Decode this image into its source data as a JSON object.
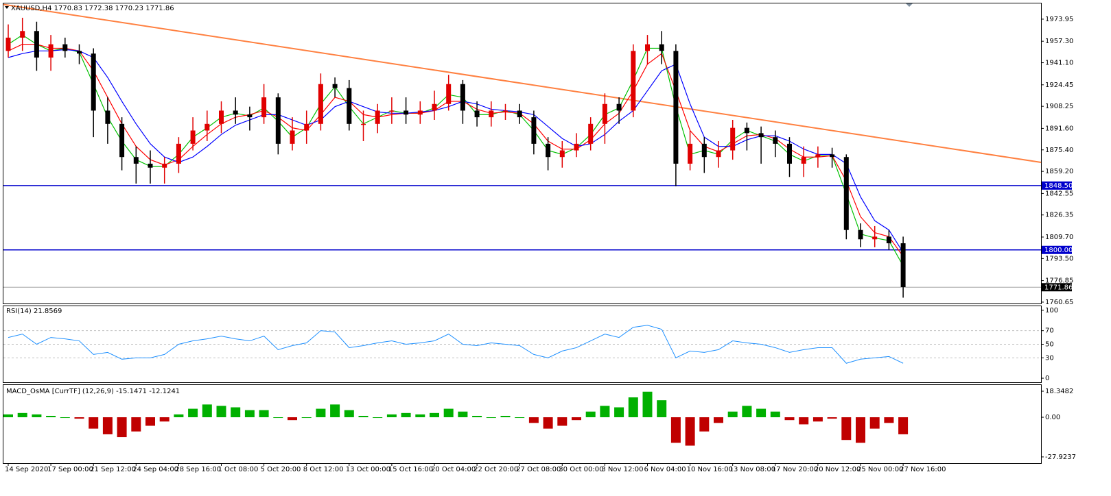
{
  "chart_data": [
    {
      "type": "candlestick",
      "title": "XAUUSD,H4  1770.83 1772.38 1770.23 1771.86",
      "categories": [
        "14 Sep 2020",
        null,
        null,
        "17 Sep 00:00",
        null,
        null,
        "21 Sep 12:00",
        null,
        null,
        "24 Sep 04:00",
        null,
        null,
        "28 Sep 16:00",
        null,
        null,
        "1 Oct 08:00",
        null,
        null,
        "5 Oct 20:00",
        null,
        null,
        "8 Oct 12:00",
        null,
        null,
        "13 Oct 00:00",
        null,
        null,
        "15 Oct 16:00",
        null,
        null,
        "20 Oct 04:00",
        null,
        null,
        "22 Oct 20:00",
        null,
        null,
        "27 Oct 08:00",
        null,
        null,
        "30 Oct 00:00",
        null,
        null,
        "3 Nov 12:00",
        null,
        null,
        "6 Nov 04:00",
        null,
        null,
        "10 Nov 16:00",
        null,
        null,
        "13 Nov 08:00",
        null,
        null,
        "17 Nov 20:00",
        null,
        null,
        "20 Nov 12:00",
        null,
        null,
        "25 Nov 00:00",
        null,
        null,
        "27 Nov 16:00"
      ],
      "open": [
        1950,
        1960,
        1965,
        1945,
        1955,
        1950,
        1948,
        1905,
        1895,
        1870,
        1865,
        1862,
        1865,
        1880,
        1890,
        1895,
        1905,
        1902,
        1900,
        1915,
        1880,
        1890,
        1895,
        1925,
        1922,
        1895,
        1895,
        1905,
        1905,
        1902,
        1905,
        1910,
        1925,
        1905,
        1900,
        1905,
        1905,
        1900,
        1880,
        1870,
        1875,
        1880,
        1895,
        1910,
        1905,
        1950,
        1955,
        1950,
        1865,
        1880,
        1870,
        1875,
        1892,
        1888,
        1885,
        1880,
        1865,
        1870,
        1872,
        1870,
        1815,
        1808,
        1810,
        1805
      ],
      "high": [
        1970,
        1975,
        1972,
        1962,
        1960,
        1955,
        1952,
        1915,
        1900,
        1878,
        1875,
        1870,
        1885,
        1900,
        1905,
        1912,
        1915,
        1908,
        1925,
        1918,
        1900,
        1905,
        1933,
        1930,
        1928,
        1905,
        1910,
        1915,
        1915,
        1912,
        1920,
        1932,
        1928,
        1912,
        1912,
        1910,
        1910,
        1905,
        1885,
        1882,
        1888,
        1900,
        1918,
        1915,
        1955,
        1962,
        1965,
        1955,
        1890,
        1885,
        1882,
        1898,
        1896,
        1893,
        1890,
        1885,
        1878,
        1878,
        1877,
        1872,
        1820,
        1818,
        1815,
        1810
      ],
      "low": [
        1945,
        1950,
        1935,
        1935,
        1945,
        1940,
        1885,
        1880,
        1860,
        1850,
        1850,
        1850,
        1858,
        1875,
        1882,
        1888,
        1895,
        1890,
        1895,
        1872,
        1875,
        1880,
        1890,
        1915,
        1890,
        1882,
        1888,
        1895,
        1895,
        1895,
        1898,
        1905,
        1895,
        1893,
        1893,
        1898,
        1895,
        1872,
        1860,
        1862,
        1870,
        1875,
        1880,
        1895,
        1900,
        1940,
        1940,
        1848,
        1860,
        1858,
        1862,
        1868,
        1875,
        1865,
        1870,
        1855,
        1855,
        1862,
        1862,
        1808,
        1802,
        1802,
        1800,
        1764
      ],
      "close": [
        1960,
        1965,
        1945,
        1955,
        1950,
        1948,
        1905,
        1895,
        1870,
        1865,
        1862,
        1865,
        1880,
        1890,
        1895,
        1905,
        1902,
        1900,
        1915,
        1880,
        1890,
        1895,
        1925,
        1922,
        1895,
        1895,
        1905,
        1905,
        1902,
        1905,
        1910,
        1925,
        1905,
        1900,
        1905,
        1905,
        1900,
        1880,
        1870,
        1875,
        1880,
        1895,
        1910,
        1905,
        1950,
        1955,
        1950,
        1865,
        1880,
        1870,
        1875,
        1892,
        1888,
        1885,
        1880,
        1865,
        1870,
        1872,
        1870,
        1815,
        1808,
        1810,
        1805,
        1772
      ],
      "up_color": "#e00000",
      "down_color": "#000000",
      "lines": [
        {
          "color": "#00c000",
          "values": [
            1955,
            1962,
            1955,
            1950,
            1952,
            1949,
            1925,
            1900,
            1882,
            1868,
            1863,
            1863,
            1872,
            1885,
            1892,
            1900,
            1903,
            1901,
            1907,
            1897,
            1885,
            1892,
            1910,
            1923,
            1908,
            1895,
            1900,
            1905,
            1903,
            1903,
            1907,
            1917,
            1915,
            1902,
            1902,
            1905,
            1902,
            1890,
            1875,
            1872,
            1877,
            1887,
            1902,
            1907,
            1928,
            1952,
            1952,
            1908,
            1872,
            1875,
            1872,
            1883,
            1890,
            1886,
            1882,
            1872,
            1867,
            1871,
            1871,
            1842,
            1812,
            1809,
            1807,
            1788
          ]
        },
        {
          "color": "#ff0000",
          "values": [
            1950,
            1955,
            1955,
            1952,
            1952,
            1950,
            1935,
            1915,
            1895,
            1878,
            1868,
            1864,
            1868,
            1878,
            1887,
            1895,
            1900,
            1902,
            1905,
            1900,
            1892,
            1890,
            1902,
            1915,
            1912,
            1902,
            1900,
            1902,
            1903,
            1903,
            1905,
            1912,
            1912,
            1906,
            1903,
            1904,
            1903,
            1895,
            1882,
            1876,
            1876,
            1883,
            1895,
            1903,
            1920,
            1940,
            1948,
            1920,
            1890,
            1878,
            1874,
            1880,
            1886,
            1887,
            1884,
            1876,
            1870,
            1870,
            1871,
            1852,
            1825,
            1813,
            1810,
            1795
          ]
        },
        {
          "color": "#0000ff",
          "values": [
            1945,
            1948,
            1950,
            1950,
            1951,
            1950,
            1945,
            1930,
            1912,
            1895,
            1880,
            1870,
            1866,
            1870,
            1878,
            1887,
            1894,
            1898,
            1902,
            1902,
            1898,
            1894,
            1898,
            1908,
            1912,
            1908,
            1904,
            1903,
            1903,
            1904,
            1905,
            1908,
            1912,
            1910,
            1906,
            1905,
            1904,
            1902,
            1893,
            1884,
            1878,
            1880,
            1887,
            1897,
            1905,
            1920,
            1935,
            1940,
            1910,
            1885,
            1878,
            1878,
            1883,
            1886,
            1886,
            1882,
            1876,
            1872,
            1872,
            1865,
            1840,
            1822,
            1815,
            1798
          ]
        }
      ],
      "trendline": {
        "start": 1985,
        "end": 1866,
        "color": "#ff8040"
      },
      "hlines": [
        {
          "value": 1848.5,
          "label": "1848.50",
          "color": "#0000cc"
        },
        {
          "value": 1800,
          "label": "1800.00",
          "color": "#0000cc"
        }
      ],
      "price_line": {
        "value": 1771.86,
        "label": "1771.86",
        "color": "#a0a0a0"
      },
      "ylim": [
        1759.6,
        1985.8
      ],
      "yticks": [
        {
          "value": 1973.95,
          "label": "1973.95"
        },
        {
          "value": 1957.3,
          "label": "1957.30"
        },
        {
          "value": 1941.1,
          "label": "1941.10"
        },
        {
          "value": 1924.45,
          "label": "1924.45"
        },
        {
          "value": 1908.25,
          "label": "1908.25"
        },
        {
          "value": 1891.6,
          "label": "1891.60"
        },
        {
          "value": 1875.4,
          "label": "1875.40"
        },
        {
          "value": 1859.2,
          "label": "1859.20"
        },
        {
          "value": 1842.55,
          "label": "1842.55"
        },
        {
          "value": 1826.35,
          "label": "1826.35"
        },
        {
          "value": 1809.7,
          "label": "1809.70"
        },
        {
          "value": 1793.5,
          "label": "1793.50"
        },
        {
          "value": 1776.85,
          "label": "1776.85"
        },
        {
          "value": 1760.65,
          "label": "1760.65"
        }
      ]
    },
    {
      "type": "line",
      "title": "RSI(14) 21.8569",
      "values": [
        60,
        65,
        50,
        60,
        58,
        55,
        35,
        38,
        28,
        30,
        30,
        35,
        50,
        55,
        58,
        62,
        58,
        55,
        62,
        42,
        48,
        52,
        70,
        68,
        45,
        48,
        52,
        55,
        50,
        52,
        55,
        65,
        50,
        48,
        52,
        50,
        48,
        35,
        30,
        40,
        45,
        55,
        65,
        60,
        75,
        78,
        72,
        30,
        40,
        38,
        42,
        55,
        52,
        50,
        45,
        38,
        42,
        45,
        45,
        22,
        28,
        30,
        32,
        22
      ],
      "color": "#1e90ff",
      "levels": [
        70,
        50,
        30
      ],
      "ylim": [
        -6,
        106
      ],
      "yticks": [
        100,
        70,
        50,
        30,
        0
      ]
    },
    {
      "type": "histogram",
      "title": "MACD_OsMA [CurrTF] (12,26,9) -15.1471 -12.1241",
      "values": [
        2,
        3,
        2,
        1,
        0,
        -1,
        -8,
        -12,
        -14,
        -10,
        -6,
        -3,
        2,
        6,
        9,
        8,
        7,
        5,
        5,
        0,
        -2,
        0,
        6,
        9,
        5,
        1,
        0,
        2,
        3,
        2,
        3,
        6,
        4,
        1,
        0,
        1,
        0,
        -4,
        -8,
        -6,
        -2,
        4,
        8,
        7,
        14,
        18,
        12,
        -18,
        -20,
        -10,
        -4,
        4,
        8,
        6,
        4,
        -2,
        -5,
        -3,
        -1,
        -16,
        -18,
        -8,
        -4,
        -12
      ],
      "pos_color": "#00b000",
      "neg_color": "#c00000",
      "ylim": [
        -32.3,
        22.7
      ],
      "yticks": [
        18.3482,
        {
          "value": 0,
          "label": "0.00"
        },
        -27.9237
      ]
    }
  ]
}
